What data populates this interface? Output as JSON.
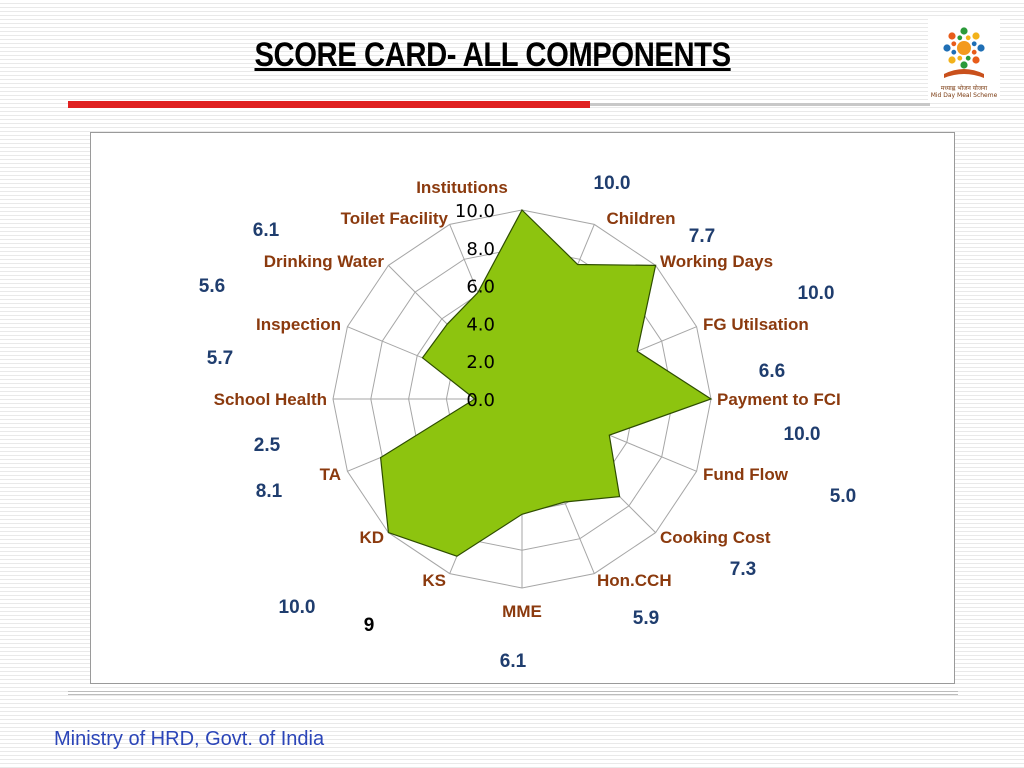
{
  "slide": {
    "title": "SCORE CARD- ALL COMPONENTS",
    "footer": "Ministry of HRD, Govt. of India",
    "logo_text": [
      "मध्याह्न भोजन योजना",
      "Mid Day Meal Scheme"
    ]
  },
  "colors": {
    "area_fill": "#8dc40f",
    "area_stroke": "#2e4d00",
    "category_label": "#8b3a0e",
    "value_label": "#1f3d6e",
    "title_underline_bar": "#e02020",
    "footer_text": "#2b45b8"
  },
  "chart_data": {
    "type": "radar",
    "categories": [
      "Institutions",
      "Children",
      "Working Days",
      "FG Utilsation",
      "Payment to FCI",
      "Fund Flow",
      "Cooking Cost",
      "Hon.CCH",
      "MME",
      "KS",
      "KD",
      "TA",
      "School Health",
      "Inspection",
      "Drinking Water",
      "Toilet Facility"
    ],
    "values": [
      10.0,
      7.7,
      10.0,
      6.6,
      10.0,
      5.0,
      7.3,
      5.9,
      6.1,
      9,
      10.0,
      8.1,
      2.5,
      5.7,
      5.6,
      6.1
    ],
    "value_labels": [
      "10.0",
      "7.7",
      "10.0",
      "6.6",
      "10.0",
      "5.0",
      "7.3",
      "5.9",
      "6.1",
      "9",
      "10.0",
      "8.1",
      "2.5",
      "5.7",
      "5.6",
      "6.1"
    ],
    "rlim": [
      0,
      10
    ],
    "ticks": [
      "0.0",
      "2.0",
      "4.0",
      "6.0",
      "8.0",
      "10.0"
    ],
    "tick_values": [
      0,
      2,
      4,
      6,
      8,
      10
    ],
    "grid": true,
    "legend": "none"
  }
}
